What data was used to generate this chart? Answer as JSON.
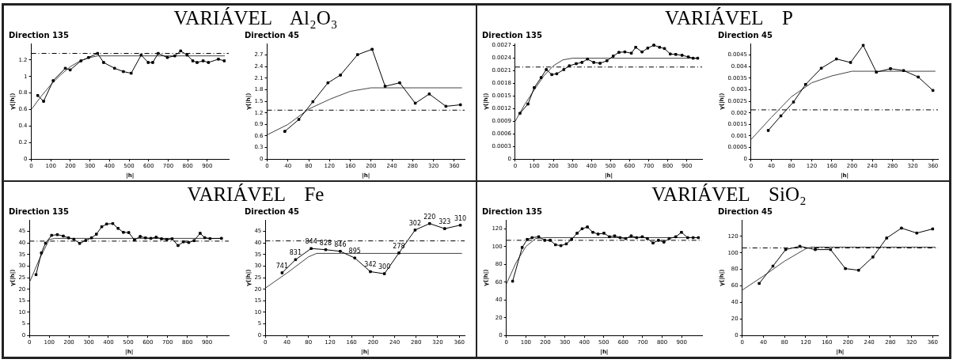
{
  "chart_data": [
    {
      "type": "line",
      "title": "Direction 135",
      "xlabel": "|h|",
      "ylabel": "γ(|h|)",
      "annotations": [
        "VARIÁVEL Al₂O₃"
      ],
      "xlim": [
        0,
        1010
      ],
      "xticks": [
        0,
        100,
        200,
        300,
        400,
        500,
        600,
        700,
        800,
        900
      ],
      "ylim": [
        0,
        1.4
      ],
      "yticks": [
        0,
        0.2,
        0.4,
        0.6,
        0.8,
        1,
        1.2
      ],
      "series": [
        {
          "color": "#000000",
          "marker": "square",
          "x": [
            33,
            63,
            112,
            174,
            199,
            254,
            293,
            339,
            370,
            426,
            471,
            511,
            562,
            598,
            621,
            649,
            696,
            734,
            764,
            797,
            826,
            848,
            879,
            906,
            957,
            987
          ],
          "values": [
            0.77,
            0.7,
            0.95,
            1.1,
            1.08,
            1.19,
            1.23,
            1.28,
            1.17,
            1.1,
            1.06,
            1.04,
            1.26,
            1.17,
            1.17,
            1.28,
            1.23,
            1.25,
            1.31,
            1.26,
            1.19,
            1.17,
            1.19,
            1.17,
            1.21,
            1.19
          ]
        },
        {
          "color": "#444444",
          "marker": "none",
          "x": [
            0,
            50,
            100,
            150,
            200,
            250,
            300,
            340,
            990
          ],
          "values": [
            0.6,
            0.76,
            0.9,
            1.02,
            1.12,
            1.19,
            1.23,
            1.25,
            1.25
          ]
        }
      ],
      "ref_lines": [
        {
          "axis": "y",
          "value": 1.28,
          "line_style": "dashed"
        }
      ]
    },
    {
      "type": "line",
      "title": "Direction 45",
      "xlabel": "|h|",
      "ylabel": "γ(|h|)",
      "xlim": [
        0,
        380
      ],
      "xticks": [
        0,
        40,
        80,
        120,
        160,
        200,
        240,
        280,
        320,
        360
      ],
      "ylim": [
        0,
        3
      ],
      "yticks": [
        0,
        0.3,
        0.6,
        0.9,
        1.2,
        1.5,
        1.8,
        2.1,
        2.4,
        2.7
      ],
      "series": [
        {
          "color": "#000000",
          "marker": "square",
          "x": [
            34,
            61,
            88,
            117,
            141,
            174,
            202,
            227,
            255,
            285,
            312,
            344,
            372
          ],
          "values": [
            0.72,
            1.03,
            1.49,
            1.98,
            2.18,
            2.71,
            2.85,
            1.89,
            1.98,
            1.45,
            1.69,
            1.37,
            1.41
          ]
        },
        {
          "color": "#444444",
          "marker": "none",
          "x": [
            0,
            40,
            80,
            120,
            160,
            200,
            375
          ],
          "values": [
            0.63,
            0.9,
            1.3,
            1.55,
            1.76,
            1.85,
            1.85
          ]
        }
      ],
      "ref_lines": [
        {
          "axis": "y",
          "value": 1.27,
          "line_style": "dashed"
        }
      ]
    },
    {
      "type": "line",
      "title": "Direction 135",
      "xlabel": "|h|",
      "ylabel": "γ(|h|)",
      "annotations": [
        "VARIÁVEL P"
      ],
      "xlim": [
        0,
        980
      ],
      "xticks": [
        0,
        100,
        200,
        300,
        400,
        500,
        600,
        700,
        800,
        900
      ],
      "ylim": [
        0,
        0.00275
      ],
      "yticks": [
        0,
        0.0003,
        0.0006,
        0.0009,
        0.0012,
        0.0015,
        0.0018,
        0.0021,
        0.0024,
        0.0027
      ],
      "series": [
        {
          "color": "#000000",
          "marker": "square",
          "x": [
            25,
            67,
            100,
            136,
            163,
            192,
            218,
            255,
            284,
            320,
            350,
            379,
            412,
            445,
            481,
            514,
            544,
            575,
            609,
            632,
            665,
            695,
            727,
            757,
            783,
            813,
            842,
            875,
            908,
            933,
            957
          ],
          "values": [
            0.00109,
            0.00131,
            0.0017,
            0.00194,
            0.00213,
            0.00201,
            0.00203,
            0.00213,
            0.00222,
            0.00227,
            0.0023,
            0.00238,
            0.0023,
            0.00228,
            0.00234,
            0.00245,
            0.00254,
            0.00255,
            0.00252,
            0.00266,
            0.00255,
            0.00264,
            0.00271,
            0.00266,
            0.00263,
            0.0025,
            0.00249,
            0.00247,
            0.00243,
            0.0024,
            0.0024
          ]
        },
        {
          "color": "#444444",
          "marker": "none",
          "x": [
            0,
            50,
            100,
            150,
            200,
            250,
            300,
            960
          ],
          "values": [
            0.0009,
            0.0013,
            0.00165,
            0.00198,
            0.00222,
            0.00236,
            0.0024,
            0.0024
          ]
        }
      ],
      "ref_lines": [
        {
          "axis": "y",
          "value": 0.00219,
          "line_style": "dashed"
        }
      ]
    },
    {
      "type": "line",
      "title": "Direction 45",
      "xlabel": "|h|",
      "ylabel": "γ(|h|)",
      "xlim": [
        0,
        370
      ],
      "xticks": [
        0,
        40,
        80,
        120,
        160,
        200,
        240,
        280,
        320,
        360
      ],
      "ylim": [
        0,
        0.005
      ],
      "yticks": [
        0,
        0.0005,
        0.001,
        0.0015,
        0.002,
        0.0025,
        0.003,
        0.0035,
        0.004,
        0.0045
      ],
      "series": [
        {
          "color": "#000000",
          "marker": "square",
          "x": [
            34,
            59,
            84,
            108,
            139,
            169,
            197,
            222,
            248,
            276,
            302,
            331,
            360
          ],
          "values": [
            0.00124,
            0.00187,
            0.00247,
            0.00323,
            0.00393,
            0.00433,
            0.00418,
            0.00492,
            0.00376,
            0.00391,
            0.00383,
            0.00355,
            0.00297
          ]
        },
        {
          "color": "#444444",
          "marker": "none",
          "x": [
            0,
            40,
            80,
            120,
            160,
            200,
            365
          ],
          "values": [
            0.00085,
            0.0018,
            0.0027,
            0.0033,
            0.0036,
            0.0038,
            0.0038
          ]
        }
      ],
      "ref_lines": [
        {
          "axis": "y",
          "value": 0.00213,
          "line_style": "dashed"
        }
      ]
    },
    {
      "type": "line",
      "title": "Direction 135",
      "xlabel": "|h|",
      "ylabel": "γ(|h|)",
      "annotations": [
        "VARIÁVEL Fe"
      ],
      "xlim": [
        0,
        1010
      ],
      "xticks": [
        0,
        100,
        200,
        300,
        400,
        500,
        600,
        700,
        800,
        900
      ],
      "ylim": [
        0,
        50
      ],
      "yticks": [
        0,
        5,
        10,
        15,
        20,
        25,
        30,
        35,
        40,
        45
      ],
      "series": [
        {
          "color": "#000000",
          "marker": "square",
          "x": [
            33,
            60,
            81,
            112,
            141,
            171,
            198,
            225,
            254,
            285,
            314,
            339,
            366,
            391,
            422,
            449,
            476,
            503,
            532,
            561,
            588,
            615,
            642,
            669,
            696,
            723,
            753,
            780,
            807,
            834,
            865,
            888,
            915,
            973
          ],
          "values": [
            26.3,
            35.7,
            39.9,
            43.3,
            43.6,
            43,
            42.2,
            41.6,
            39.8,
            41.1,
            42.2,
            43.8,
            47,
            48.2,
            48.4,
            46.3,
            44.6,
            44.5,
            41.3,
            42.8,
            42.2,
            42,
            42.5,
            41.8,
            41.5,
            41.8,
            38.9,
            40.5,
            40.2,
            41,
            44.2,
            42.3,
            41.9,
            42
          ]
        },
        {
          "color": "#444444",
          "marker": "none",
          "x": [
            0,
            50,
            100,
            130,
            980
          ],
          "values": [
            23,
            33,
            41.5,
            42,
            42
          ]
        }
      ],
      "ref_lines": [
        {
          "axis": "y",
          "value": 40.8,
          "line_style": "dashed"
        }
      ]
    },
    {
      "type": "line",
      "title": "Direction 45",
      "xlabel": "|h|",
      "ylabel": "γ(|h|)",
      "annotations": [
        {
          "text": "741",
          "x": 31,
          "y": 27.1
        },
        {
          "text": "831",
          "x": 56,
          "y": 32.8
        },
        {
          "text": "844",
          "x": 85,
          "y": 37.6
        },
        {
          "text": "828",
          "x": 112,
          "y": 37.1
        },
        {
          "text": "846",
          "x": 139,
          "y": 36.4
        },
        {
          "text": "895",
          "x": 166,
          "y": 33.5
        },
        {
          "text": "342",
          "x": 195,
          "y": 27.6
        },
        {
          "text": "300",
          "x": 221,
          "y": 26.7
        },
        {
          "text": "278",
          "x": 248,
          "y": 35.7
        },
        {
          "text": "302",
          "x": 278,
          "y": 45.6
        },
        {
          "text": "220",
          "x": 305,
          "y": 48.4
        },
        {
          "text": "323",
          "x": 333,
          "y": 46.2
        },
        {
          "text": "310",
          "x": 362,
          "y": 47.7
        }
      ],
      "xlim": [
        0,
        370
      ],
      "xticks": [
        0,
        40,
        80,
        120,
        160,
        200,
        240,
        280,
        320,
        360
      ],
      "ylim": [
        0,
        50
      ],
      "yticks": [
        0,
        5,
        10,
        15,
        20,
        25,
        30,
        35,
        40,
        45
      ],
      "series": [
        {
          "color": "#000000",
          "marker": "square",
          "x": [
            31,
            56,
            85,
            112,
            139,
            166,
            195,
            221,
            248,
            278,
            305,
            333,
            362
          ],
          "values": [
            27.1,
            32.8,
            37.6,
            37.1,
            36.4,
            33.5,
            27.6,
            26.7,
            35.7,
            45.6,
            48.4,
            46.2,
            47.7
          ]
        },
        {
          "color": "#444444",
          "marker": "none",
          "x": [
            0,
            40,
            80,
            95,
            365
          ],
          "values": [
            20.5,
            27,
            34,
            35.5,
            35.5
          ]
        }
      ],
      "ref_lines": [
        {
          "axis": "y",
          "value": 40.9,
          "line_style": "dashed"
        }
      ]
    },
    {
      "type": "line",
      "title": "Direction 135",
      "xlabel": "|h|",
      "ylabel": "γ(|h|)",
      "annotations": [
        "VARIÁVEL SiO₂"
      ],
      "xlim": [
        0,
        1005
      ],
      "xticks": [
        0,
        100,
        200,
        300,
        400,
        500,
        600,
        700,
        800,
        900
      ],
      "ylim": [
        0,
        130
      ],
      "yticks": [
        0,
        20,
        40,
        60,
        80,
        100,
        120
      ],
      "series": [
        {
          "color": "#000000",
          "marker": "square",
          "x": [
            32,
            81,
            107,
            132,
            166,
            197,
            225,
            252,
            280,
            308,
            335,
            363,
            389,
            416,
            444,
            471,
            501,
            529,
            556,
            584,
            613,
            641,
            669,
            698,
            724,
            753,
            781,
            809,
            836,
            870,
            899,
            931,
            959,
            986
          ],
          "values": [
            61,
            99,
            108,
            110,
            111,
            107,
            107,
            102,
            101,
            103,
            108,
            115,
            120,
            122,
            116,
            114,
            115,
            111,
            112,
            110,
            109,
            112,
            110,
            111,
            109,
            104,
            107,
            105,
            109,
            111,
            116,
            110,
            110,
            110
          ]
        },
        {
          "color": "#444444",
          "marker": "none",
          "x": [
            0,
            50,
            100,
            150,
            200,
            990
          ],
          "values": [
            58,
            82,
            100,
            109,
            110,
            110
          ]
        }
      ],
      "ref_lines": [
        {
          "axis": "y",
          "value": 107,
          "line_style": "dashed"
        }
      ]
    },
    {
      "type": "line",
      "title": "Direction 45",
      "xlabel": "|h|",
      "ylabel": "γ(|h|)",
      "xlim": [
        0,
        370
      ],
      "xticks": [
        0,
        40,
        80,
        120,
        160,
        200,
        240,
        280,
        320,
        360
      ],
      "ylim": [
        0,
        140
      ],
      "yticks": [
        0,
        20,
        40,
        60,
        80,
        100,
        120
      ],
      "series": [
        {
          "color": "#000000",
          "marker": "square",
          "x": [
            32,
            58,
            82,
            109,
            138,
            167,
            195,
            220,
            247,
            273,
            301,
            330,
            360
          ],
          "values": [
            63,
            84,
            104,
            108,
            104,
            104,
            81,
            79,
            95,
            118,
            130,
            124,
            129
          ]
        },
        {
          "color": "#444444",
          "marker": "none",
          "x": [
            0,
            40,
            80,
            120,
            130,
            365
          ],
          "values": [
            55,
            72,
            90,
            105,
            107,
            107
          ]
        }
      ],
      "ref_lines": [
        {
          "axis": "y",
          "value": 106,
          "line_style": "dashed"
        }
      ]
    }
  ]
}
